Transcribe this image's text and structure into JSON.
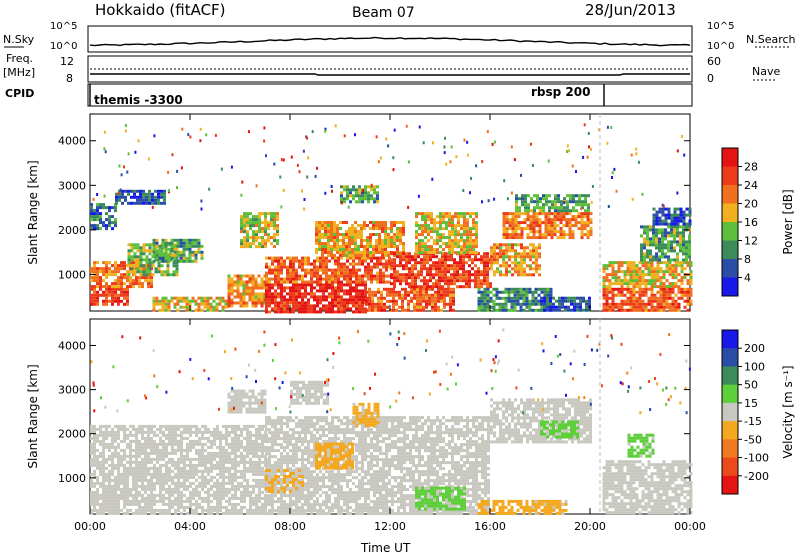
{
  "header": {
    "radar": "Hokkaido (fitACF)",
    "beam": "Beam 07",
    "date": "28/Jun/2013"
  },
  "strip": {
    "nsky_label": "N.Sky",
    "nsearch_label": "N.Search",
    "freq_label_1": "Freq.",
    "freq_label_2": "[MHz]",
    "nave_label": "Nave",
    "cpid_label": "CPID",
    "left_ticks_top": [
      "10^5",
      "10^0"
    ],
    "right_ticks_top": [
      "10^5",
      "10^0"
    ],
    "left_ticks_freq": [
      "12",
      "8"
    ],
    "right_ticks_nave": [
      "60",
      "0"
    ],
    "cpid_entries": [
      {
        "label": "themis -3300",
        "hour": 0.0
      },
      {
        "label": "rbsp 200",
        "hour": 20.4
      }
    ]
  },
  "chart_data": [
    {
      "type": "heatmap",
      "name": "power-panel",
      "xlabel": "",
      "ylabel": "Slant Range [km]",
      "xlim": [
        0,
        24
      ],
      "ylim": [
        180,
        4600
      ],
      "yticks": [
        1000,
        2000,
        3000,
        4000
      ],
      "colorbar": {
        "label": "Power [dB]",
        "ticks": [
          "4",
          "8",
          "12",
          "16",
          "20",
          "24",
          "28"
        ],
        "range": [
          0,
          32
        ],
        "colors": [
          "#1818e8",
          "#2a4ea8",
          "#3c8c5a",
          "#5dbf3a",
          "#f0b020",
          "#f07020",
          "#ec3a1a",
          "#e41414"
        ]
      },
      "blocks": [
        {
          "t0": 0.0,
          "t1": 1.5,
          "r0": 300,
          "r1": 700,
          "v": 26
        },
        {
          "t0": 0.0,
          "t1": 2.5,
          "r0": 700,
          "r1": 1300,
          "v": 22
        },
        {
          "t0": 1.5,
          "t1": 3.5,
          "r0": 1000,
          "r1": 1700,
          "v": 14
        },
        {
          "t0": 2.5,
          "t1": 4.5,
          "r0": 1300,
          "r1": 1800,
          "v": 12
        },
        {
          "t0": 0.0,
          "t1": 1.0,
          "r0": 2000,
          "r1": 2600,
          "v": 8
        },
        {
          "t0": 1.0,
          "t1": 3.0,
          "r0": 2600,
          "r1": 2900,
          "v": 6
        },
        {
          "t0": 2.5,
          "t1": 5.5,
          "r0": 200,
          "r1": 500,
          "v": 18
        },
        {
          "t0": 5.5,
          "t1": 7.0,
          "r0": 300,
          "r1": 1000,
          "v": 20
        },
        {
          "t0": 6.0,
          "t1": 7.5,
          "r0": 1600,
          "r1": 2400,
          "v": 16
        },
        {
          "t0": 7.0,
          "t1": 11.0,
          "r0": 180,
          "r1": 800,
          "v": 28
        },
        {
          "t0": 7.0,
          "t1": 12.0,
          "r0": 800,
          "r1": 1400,
          "v": 24
        },
        {
          "t0": 9.0,
          "t1": 12.5,
          "r0": 1400,
          "r1": 2200,
          "v": 20
        },
        {
          "t0": 11.0,
          "t1": 14.5,
          "r0": 180,
          "r1": 700,
          "v": 24
        },
        {
          "t0": 12.0,
          "t1": 16.0,
          "r0": 700,
          "r1": 1500,
          "v": 26
        },
        {
          "t0": 13.0,
          "t1": 15.5,
          "r0": 1500,
          "r1": 2400,
          "v": 18
        },
        {
          "t0": 16.0,
          "t1": 18.0,
          "r0": 1000,
          "r1": 1700,
          "v": 20
        },
        {
          "t0": 16.5,
          "t1": 20.0,
          "r0": 1800,
          "r1": 2400,
          "v": 22
        },
        {
          "t0": 17.0,
          "t1": 20.0,
          "r0": 2400,
          "r1": 2800,
          "v": 12
        },
        {
          "t0": 15.5,
          "t1": 18.5,
          "r0": 180,
          "r1": 700,
          "v": 10
        },
        {
          "t0": 18.0,
          "t1": 20.0,
          "r0": 200,
          "r1": 500,
          "v": 6
        },
        {
          "t0": 20.5,
          "t1": 24.0,
          "r0": 180,
          "r1": 700,
          "v": 24
        },
        {
          "t0": 20.5,
          "t1": 24.0,
          "r0": 700,
          "r1": 1300,
          "v": 18
        },
        {
          "t0": 22.0,
          "t1": 24.0,
          "r0": 1300,
          "r1": 2100,
          "v": 12
        },
        {
          "t0": 22.5,
          "t1": 24.0,
          "r0": 2100,
          "r1": 2500,
          "v": 6
        },
        {
          "t0": 10.0,
          "t1": 11.5,
          "r0": 2600,
          "r1": 3000,
          "v": 12
        }
      ]
    },
    {
      "type": "heatmap",
      "name": "velocity-panel",
      "xlabel": "Time UT",
      "ylabel": "Slant Range [km]",
      "xlim": [
        0,
        24
      ],
      "ylim": [
        180,
        4600
      ],
      "xticks": [
        "00:00",
        "04:00",
        "08:00",
        "12:00",
        "16:00",
        "20:00",
        "00:00"
      ],
      "yticks": [
        1000,
        2000,
        3000,
        4000
      ],
      "colorbar": {
        "label": "Velocity [m s⁻¹]",
        "ticks": [
          "-200",
          "-100",
          "-50",
          "-15",
          "15",
          "50",
          "100",
          "200"
        ],
        "range": [
          -250,
          250
        ],
        "colors": [
          "#e41414",
          "#ec4a1a",
          "#f07a20",
          "#f4a820",
          "#c8c8c0",
          "#5dcf3a",
          "#3c8c5a",
          "#2a4ea8",
          "#1818e8"
        ]
      },
      "blocks": [
        {
          "t0": 0.0,
          "t1": 7.0,
          "r0": 200,
          "r1": 2200,
          "v": 0
        },
        {
          "t0": 7.0,
          "t1": 16.0,
          "r0": 200,
          "r1": 2400,
          "v": 0
        },
        {
          "t0": 16.0,
          "t1": 20.0,
          "r0": 1800,
          "r1": 2800,
          "v": 0
        },
        {
          "t0": 20.5,
          "t1": 24.0,
          "r0": 200,
          "r1": 1400,
          "v": 0
        },
        {
          "t0": 9.0,
          "t1": 10.5,
          "r0": 1200,
          "r1": 1800,
          "v": -60
        },
        {
          "t0": 10.5,
          "t1": 11.5,
          "r0": 2200,
          "r1": 2700,
          "v": -40
        },
        {
          "t0": 13.0,
          "t1": 15.0,
          "r0": 300,
          "r1": 800,
          "v": 40
        },
        {
          "t0": 18.0,
          "t1": 19.5,
          "r0": 1900,
          "r1": 2300,
          "v": 40
        },
        {
          "t0": 15.5,
          "t1": 19.0,
          "r0": 180,
          "r1": 500,
          "v": -40
        },
        {
          "t0": 7.0,
          "t1": 8.5,
          "r0": 700,
          "r1": 1200,
          "v": -30
        },
        {
          "t0": 21.5,
          "t1": 22.5,
          "r0": 1500,
          "r1": 2000,
          "v": 40
        },
        {
          "t0": 5.5,
          "t1": 7.0,
          "r0": 2500,
          "r1": 3000,
          "v": 0
        },
        {
          "t0": 8.0,
          "t1": 9.5,
          "r0": 2700,
          "r1": 3200,
          "v": 0
        }
      ]
    }
  ]
}
